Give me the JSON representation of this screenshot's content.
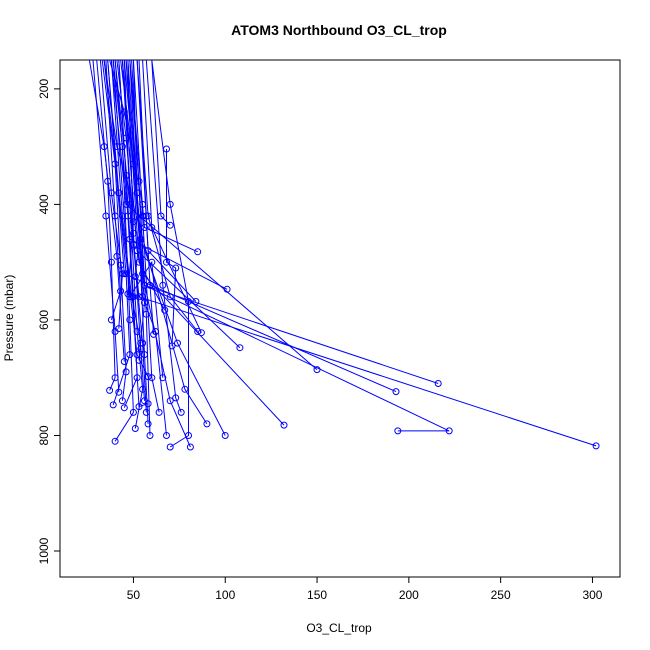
{
  "chart_data": {
    "type": "line",
    "title": "ATOM3 Northbound O3_CL_trop",
    "xlabel": "O3_CL_trop",
    "ylabel": "Pressure (mbar)",
    "xlim": [
      10,
      315
    ],
    "ylim": [
      1045,
      150
    ],
    "y_reversed": true,
    "x_ticks": [
      50,
      100,
      150,
      200,
      250,
      300
    ],
    "y_ticks": [
      200,
      400,
      600,
      800,
      1000
    ],
    "grid": false,
    "legend": "none",
    "color": "#0000ff",
    "series": [
      {
        "x": [
          30,
          36,
          38,
          40,
          37
        ],
        "y": [
          150,
          360,
          500,
          700,
          722
        ]
      },
      {
        "x": [
          33,
          40,
          43,
          46,
          44
        ],
        "y": [
          150,
          330,
          505,
          690,
          740
        ]
      },
      {
        "x": [
          36,
          42,
          46,
          48,
          39
        ],
        "y": [
          150,
          380,
          520,
          660,
          747
        ]
      },
      {
        "x": [
          39,
          44,
          48,
          50,
          40
        ],
        "y": [
          150,
          300,
          600,
          760,
          810
        ]
      },
      {
        "x": [
          42,
          46,
          50,
          52,
          45
        ],
        "y": [
          150,
          350,
          560,
          700,
          752
        ]
      },
      {
        "x": [
          45,
          48,
          52,
          55,
          51
        ],
        "y": [
          150,
          400,
          620,
          720,
          788
        ]
      },
      {
        "x": [
          28,
          35,
          40,
          42
        ],
        "y": [
          150,
          420,
          620,
          725
        ]
      },
      {
        "x": [
          47,
          50,
          54,
          56
        ],
        "y": [
          150,
          450,
          650,
          740
        ]
      },
      {
        "x": [
          35,
          40,
          43,
          38
        ],
        "y": [
          150,
          420,
          550,
          600
        ]
      },
      {
        "x": [
          32,
          38,
          44,
          42
        ],
        "y": [
          150,
          380,
          520,
          615
        ]
      },
      {
        "x": [
          44,
          50,
          55,
          57
        ],
        "y": [
          150,
          470,
          640,
          760
        ]
      },
      {
        "x": [
          50,
          52,
          56,
          58
        ],
        "y": [
          150,
          380,
          660,
          780
        ]
      },
      {
        "x": [
          26,
          34,
          41,
          45
        ],
        "y": [
          150,
          300,
          490,
          672
        ]
      },
      {
        "x": [
          38,
          44,
          49,
          54
        ],
        "y": [
          150,
          420,
          560,
          640
        ]
      },
      {
        "x": [
          48,
          53,
          57,
          59
        ],
        "y": [
          150,
          360,
          590,
          800
        ]
      },
      {
        "x": [
          41,
          46,
          50,
          47
        ],
        "y": [
          150,
          285,
          430,
          555
        ]
      },
      {
        "x": [
          50,
          55,
          60,
          64
        ],
        "y": [
          150,
          420,
          700,
          760
        ]
      },
      {
        "x": [
          52,
          58,
          70,
          85
        ],
        "y": [
          150,
          420,
          560,
          620
        ]
      },
      {
        "x": [
          46,
          54,
          74,
          100
        ],
        "y": [
          150,
          460,
          640,
          800
        ]
      },
      {
        "x": [
          34,
          41,
          78,
          90
        ],
        "y": [
          150,
          300,
          720,
          780
        ]
      },
      {
        "x": [
          38,
          46,
          150
        ],
        "y": [
          150,
          400,
          686
        ]
      },
      {
        "x": [
          42,
          48,
          101
        ],
        "y": [
          150,
          460,
          547
        ]
      },
      {
        "x": [
          44,
          52,
          108
        ],
        "y": [
          150,
          480,
          648
        ]
      },
      {
        "x": [
          47,
          55,
          132
        ],
        "y": [
          150,
          520,
          782
        ]
      },
      {
        "x": [
          49,
          56,
          216
        ],
        "y": [
          150,
          540,
          710
        ]
      },
      {
        "x": [
          36,
          45,
          193
        ],
        "y": [
          150,
          520,
          724
        ]
      },
      {
        "x": [
          40,
          53,
          302
        ],
        "y": [
          150,
          560,
          818
        ]
      },
      {
        "x": [
          45,
          56,
          222,
          194
        ],
        "y": [
          150,
          540,
          792,
          792
        ]
      },
      {
        "x": [
          46,
          53,
          67
        ],
        "y": [
          150,
          500,
          583
        ]
      },
      {
        "x": [
          52,
          58,
          84
        ],
        "y": [
          150,
          480,
          568
        ]
      },
      {
        "x": [
          55,
          60,
          87
        ],
        "y": [
          150,
          440,
          622
        ]
      },
      {
        "x": [
          48,
          56,
          85
        ],
        "y": [
          150,
          440,
          482
        ]
      },
      {
        "x": [
          68,
          68,
          73,
          71
        ],
        "y": [
          304,
          500,
          510,
          645
        ]
      },
      {
        "x": [
          60,
          65,
          70
        ],
        "y": [
          150,
          420,
          436
        ]
      },
      {
        "x": [
          60,
          70,
          80,
          80,
          70
        ],
        "y": [
          150,
          400,
          568,
          800,
          820
        ]
      },
      {
        "x": [
          57,
          66,
          73,
          76
        ],
        "y": [
          150,
          540,
          735,
          760
        ]
      },
      {
        "x": [
          44,
          52,
          70,
          81
        ],
        "y": [
          150,
          480,
          740,
          820
        ]
      },
      {
        "x": [
          48,
          55,
          62,
          68
        ],
        "y": [
          150,
          560,
          620,
          800
        ]
      },
      {
        "x": [
          40,
          47,
          53,
          58
        ],
        "y": [
          150,
          420,
          750,
          745
        ]
      },
      {
        "x": [
          39,
          48,
          60,
          66
        ],
        "y": [
          150,
          560,
          500,
          700
        ]
      },
      {
        "x": [
          53,
          57,
          59,
          61
        ],
        "y": [
          150,
          420,
          540,
          625
        ]
      },
      {
        "x": [
          34,
          42,
          52,
          58
        ],
        "y": [
          150,
          380,
          660,
          698
        ]
      },
      {
        "x": [
          37,
          45,
          55,
          51
        ],
        "y": [
          150,
          240,
          400,
          525
        ]
      },
      {
        "x": [
          43,
          50,
          56,
          53
        ],
        "y": [
          150,
          330,
          570,
          670
        ]
      }
    ]
  }
}
